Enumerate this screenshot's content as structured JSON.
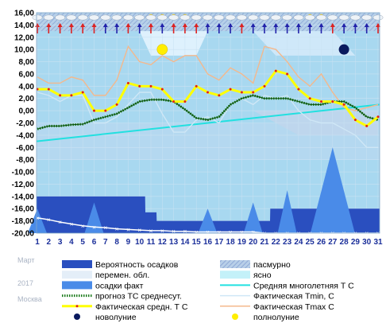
{
  "chart_data": {
    "type": "line",
    "y_axis": {
      "min": -20,
      "max": 16,
      "step": 2,
      "tick_format": "fixed2_comma"
    },
    "days": [
      1,
      2,
      3,
      4,
      5,
      6,
      7,
      8,
      9,
      10,
      11,
      12,
      13,
      14,
      15,
      16,
      17,
      18,
      19,
      20,
      21,
      22,
      23,
      24,
      25,
      26,
      27,
      28,
      29,
      30,
      31
    ],
    "series": [
      {
        "key": "fact_tmax",
        "name": "Фактическая Tmax, С",
        "color": "#f4b88c",
        "values": [
          5.5,
          4.5,
          4.5,
          5.5,
          5.0,
          2.5,
          2.5,
          5.0,
          10.5,
          8.0,
          7.5,
          9.0,
          8.0,
          9.0,
          9.0,
          6.0,
          5.0,
          7.0,
          6.0,
          4.5,
          10.5,
          10.0,
          8.0,
          5.5,
          4.0,
          6.0,
          3.0,
          0.5,
          0.0,
          0.5,
          1.0
        ]
      },
      {
        "key": "fact_tmin",
        "name": "Фактическая Tmin, С",
        "color": "#cfe7f6",
        "values": [
          3.0,
          2.5,
          1.5,
          2.5,
          2.5,
          -2.0,
          -2.0,
          -1.0,
          1.0,
          3.0,
          3.0,
          -0.5,
          -3.5,
          -3.5,
          -1.5,
          -1.0,
          -2.0,
          1.0,
          2.0,
          1.0,
          2.5,
          2.0,
          2.5,
          0.0,
          -1.5,
          -2.0,
          -2.0,
          -3.0,
          -4.0,
          -6.0,
          -6.0
        ]
      },
      {
        "key": "forecast_avg",
        "name": "прогноз ТС среднесут.",
        "color": "#1a7a1a",
        "values": [
          -3.0,
          -2.5,
          -2.5,
          -2.3,
          -2.2,
          -1.5,
          -1.0,
          -0.5,
          0.5,
          1.5,
          1.8,
          1.8,
          1.5,
          0.2,
          -1.2,
          -1.5,
          -1.0,
          1.0,
          2.0,
          2.5,
          2.0,
          2.0,
          2.0,
          1.5,
          1.0,
          1.0,
          1.5,
          1.5,
          0.5,
          -1.0,
          -1.5
        ]
      },
      {
        "key": "fact_avg",
        "name": "Фактическая средн. Т С",
        "color": "#ffff00",
        "values": [
          3.5,
          3.5,
          2.5,
          2.5,
          3.0,
          0.0,
          0.0,
          1.0,
          4.5,
          4.0,
          4.0,
          3.5,
          1.5,
          1.5,
          4.0,
          3.0,
          2.5,
          3.5,
          3.0,
          3.0,
          4.0,
          6.5,
          6.0,
          3.5,
          2.0,
          1.5,
          1.5,
          1.0,
          -1.5,
          -2.5,
          -1.0
        ]
      }
    ],
    "climate_norm": {
      "name": "Средняя многолетняя Т С",
      "color": "#22e0e0",
      "start": -5.0,
      "end": 1.0
    },
    "precip_probability": {
      "name": "Вероятность осадков",
      "values": [
        -14,
        -14,
        -14,
        -14,
        -14,
        -14,
        -14,
        -14,
        -14,
        -14,
        -16.6,
        -18,
        -18,
        -18,
        -18,
        -18,
        -18,
        -18,
        -18,
        -18,
        -18,
        -16,
        -16,
        -16,
        -16,
        -16,
        -16,
        -16,
        -16,
        -16,
        -16
      ]
    },
    "precip_fact": {
      "name": "осадки факт",
      "values": [
        -20,
        -20,
        -20,
        -20,
        -20,
        -20,
        -20,
        -20,
        -20,
        -20,
        -20,
        -20,
        -20,
        -20,
        -20,
        -20,
        -20,
        -20,
        -20,
        -20,
        -20,
        -20,
        -20,
        -20,
        -20,
        -20,
        -20,
        -20,
        -20,
        -20,
        -20
      ],
      "peaks": [
        {
          "day": 1,
          "top": -16
        },
        {
          "day": 6,
          "top": -15
        },
        {
          "day": 16,
          "top": -16
        },
        {
          "day": 20,
          "top": -15
        },
        {
          "day": 23,
          "top": -13
        },
        {
          "day": 27,
          "top": -6
        }
      ]
    },
    "snow_line": {
      "color": "#ffffff",
      "values": [
        -17.5,
        -17.8,
        -18.2,
        -18.5,
        -18.8,
        -19.0,
        -19.1,
        -19.3,
        -19.4,
        -19.5,
        -19.6,
        -19.6,
        -19.7,
        -19.7,
        -19.8,
        -19.8,
        -19.8,
        -19.8,
        -19.8,
        -19.8,
        -20,
        -20,
        -20,
        -20,
        -20,
        -20,
        -20,
        -20,
        -20,
        -20,
        -20
      ]
    },
    "new_moon_day": 28,
    "full_moon_day": 12,
    "moon_y": 10.0
  },
  "legend": {
    "month": "Март",
    "year": "2017",
    "city": "Москва",
    "items": [
      {
        "label": "Вероятность осадков",
        "swatch": "dark-blue-bar"
      },
      {
        "label": "пасмурно",
        "swatch": "hatched-bar"
      },
      {
        "label": "перемен. обл.",
        "swatch": "light-bar"
      },
      {
        "label": "ясно",
        "swatch": "cyan-bar"
      },
      {
        "label": "осадки факт",
        "swatch": "blue-bar"
      },
      {
        "label": "Средняя многолетняя Т С",
        "swatch": "cyan-line"
      },
      {
        "label": "прогноз ТС среднесут.",
        "swatch": "green-dots"
      },
      {
        "label": "Фактическая Tmin, С",
        "swatch": "light-line"
      },
      {
        "label": "Фактическая средн. Т С",
        "swatch": "yellow-line"
      },
      {
        "label": "Фактическая Tmax С",
        "swatch": "peach-line"
      },
      {
        "label": "новолуние",
        "swatch": "new-moon"
      },
      {
        "label": "полнолуние",
        "swatch": "full-moon"
      }
    ]
  },
  "colors": {
    "plot_bg": "#a8d8f0",
    "overcast": "#90aedb",
    "dark_blue": "#2a4fbf",
    "precip_blue": "#4a8be8",
    "axis_text": "#000000",
    "tick_blue": "#1b2f9a"
  }
}
